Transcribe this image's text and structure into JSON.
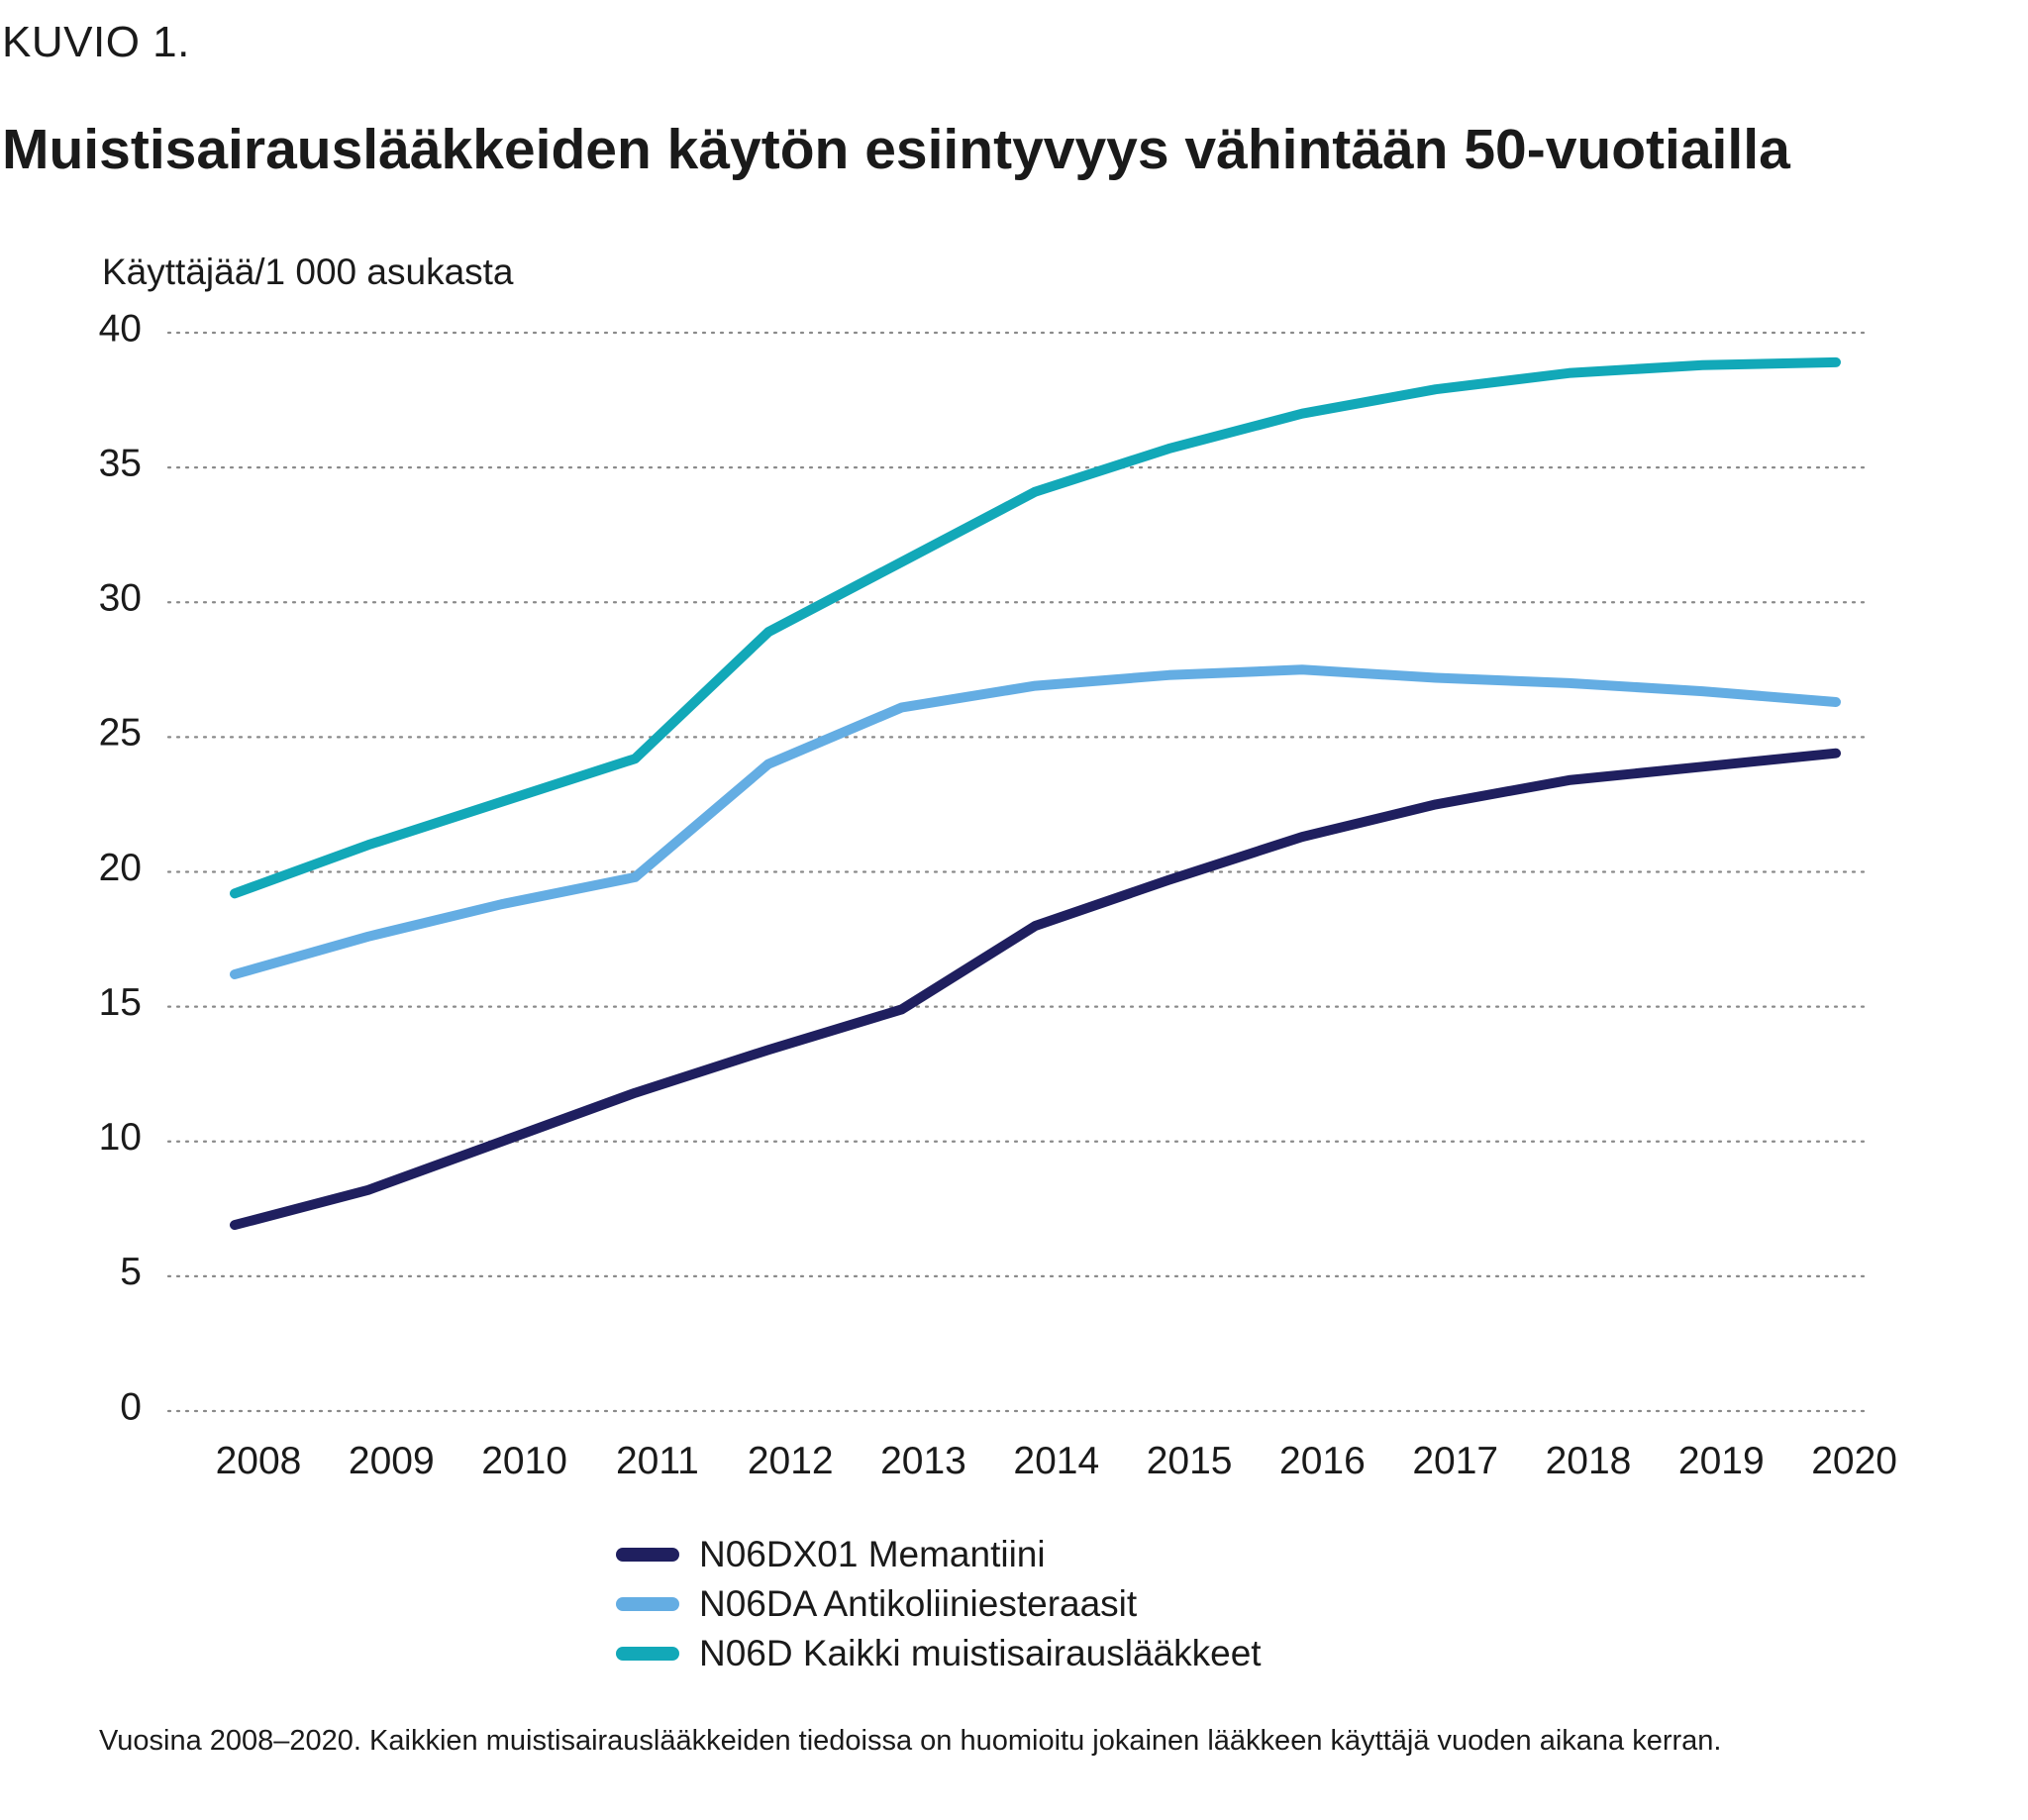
{
  "header": {
    "figure_label": "KUVIO 1.",
    "title": "Muistisairauslääkkeiden käytön esiintyvyys vähintään 50-vuotiailla"
  },
  "footnote": "Vuosina 2008–2020. Kaikkien muistisairauslääkkeiden tiedoissa on huomioitu jokainen lääkkeen käyttäjä vuoden aikana kerran.",
  "chart_data": {
    "type": "line",
    "title": "Muistisairauslääkkeiden käytön esiintyvyys vähintään 50-vuotiailla",
    "xlabel": "",
    "ylabel": "Käyttäjää/1 000 asukasta",
    "ylim": [
      0,
      40
    ],
    "yticks": [
      "0",
      "5",
      "10",
      "15",
      "20",
      "25",
      "30",
      "35",
      "40"
    ],
    "categories": [
      "2008",
      "2009",
      "2010",
      "2011",
      "2012",
      "2013",
      "2014",
      "2015",
      "2016",
      "2017",
      "2018",
      "2019",
      "2020"
    ],
    "grid": "dotted horizontal",
    "legend_position": "bottom",
    "series": [
      {
        "name": "N06DX01 Memantiini",
        "color": "#1f1f5f",
        "values": [
          6.9,
          8.2,
          10.0,
          11.8,
          13.4,
          14.9,
          18.0,
          19.7,
          21.3,
          22.5,
          23.4,
          23.9,
          24.4
        ]
      },
      {
        "name": "N06DA Antikoliiniesteraasit",
        "color": "#64ade3",
        "values": [
          16.2,
          17.6,
          18.8,
          19.8,
          24.0,
          26.1,
          26.9,
          27.3,
          27.5,
          27.2,
          27.0,
          26.7,
          26.3
        ]
      },
      {
        "name": "N06D Kaikki muistisairauslääkkeet",
        "color": "#12a8b8",
        "values": [
          19.2,
          21.0,
          22.6,
          24.2,
          28.9,
          31.5,
          34.1,
          35.7,
          37.0,
          37.9,
          38.5,
          38.8,
          38.9
        ]
      }
    ]
  }
}
